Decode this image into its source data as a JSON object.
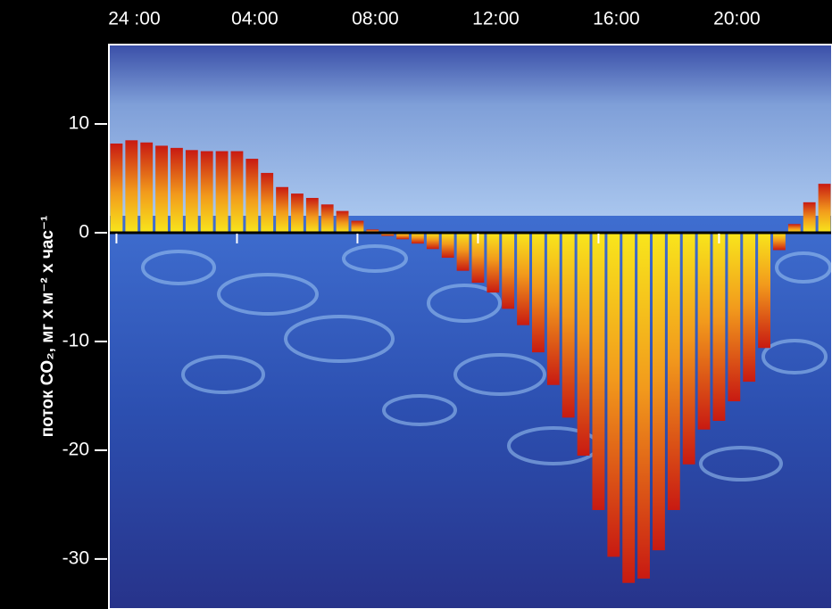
{
  "chart_data": {
    "type": "bar",
    "y_label": "поток CO₂, мг х м⁻² х час⁻¹",
    "x": [
      0,
      0.5,
      1,
      1.5,
      2,
      2.5,
      3,
      3.5,
      4,
      4.5,
      5,
      5.5,
      6,
      6.5,
      7,
      7.5,
      8,
      8.5,
      9,
      9.5,
      10,
      10.5,
      11,
      11.5,
      12,
      12.5,
      13,
      13.5,
      14,
      14.5,
      15,
      15.5,
      16,
      16.5,
      17,
      17.5,
      18,
      18.5,
      19,
      19.5,
      20,
      20.5,
      21,
      21.5,
      22,
      22.5,
      23,
      23.5
    ],
    "values": [
      8.2,
      8.5,
      8.3,
      8.0,
      7.8,
      7.6,
      7.5,
      7.5,
      7.5,
      6.8,
      5.5,
      4.2,
      3.6,
      3.2,
      2.6,
      2.0,
      1.1,
      0.3,
      -0.3,
      -0.6,
      -1.0,
      -1.5,
      -2.3,
      -3.5,
      -4.6,
      -5.5,
      -7.0,
      -8.5,
      -11.0,
      -14.0,
      -17.0,
      -20.5,
      -25.5,
      -29.8,
      -32.2,
      -31.8,
      -29.2,
      -25.5,
      -21.3,
      -18.1,
      -17.3,
      -15.5,
      -13.7,
      -10.6,
      -1.6,
      0.8,
      2.8,
      4.5
    ],
    "xlim": [
      -0.25,
      23.75
    ],
    "xticks": [
      {
        "value": 0,
        "label": "24 :00"
      },
      {
        "value": 4,
        "label": "04:00"
      },
      {
        "value": 8,
        "label": "08:00"
      },
      {
        "value": 12,
        "label": "12:00"
      },
      {
        "value": 16,
        "label": "16:00"
      },
      {
        "value": 20,
        "label": "20:00"
      }
    ],
    "ylim": [
      -34.6,
      17.3
    ],
    "yticks": [
      10,
      0,
      -10,
      -20,
      -30
    ],
    "bar_colors": [
      "#f8e61c",
      "#c81a12"
    ]
  }
}
